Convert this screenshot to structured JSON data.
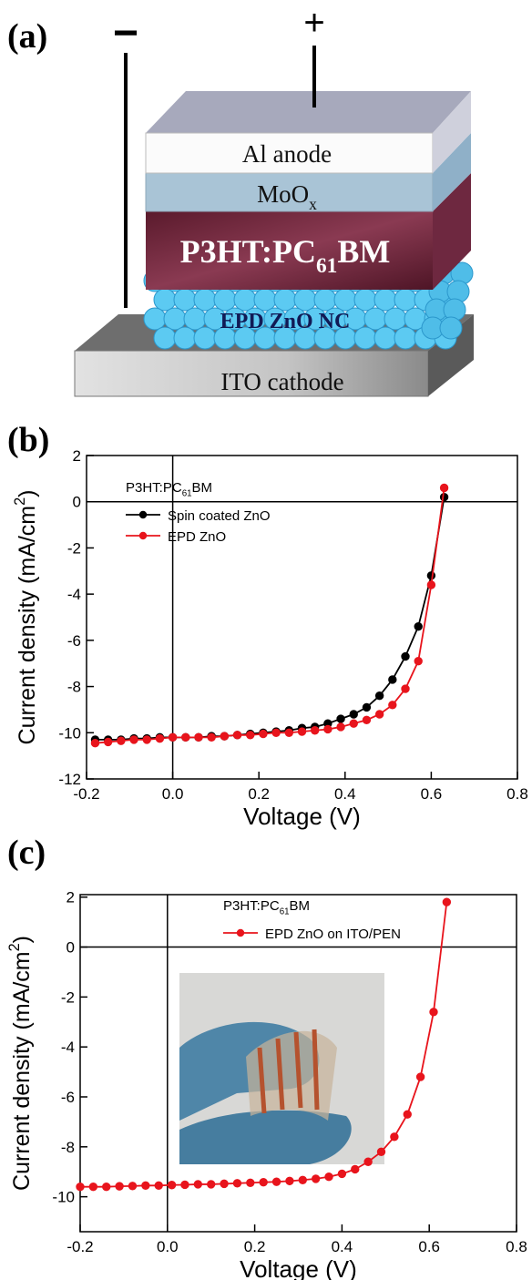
{
  "panel_labels": [
    "(a)",
    "(b)",
    "(c)"
  ],
  "diagram": {
    "minus": "−",
    "plus": "+",
    "layers": [
      [
        "Al anode"
      ],
      [
        "MoO",
        "x"
      ],
      [
        "P3HT:PC",
        "61",
        "BM"
      ],
      [
        "EPD ZnO NC"
      ],
      [
        "ITO cathode"
      ]
    ]
  },
  "chart_data": [
    {
      "type": "line",
      "x_label": "Voltage (V)",
      "y_label": [
        "Current density (mA/cm",
        "2",
        ")"
      ],
      "legend_title": [
        "P3HT:PC",
        "61",
        "BM"
      ],
      "zero_lines": true,
      "markers": true,
      "xlim": [
        -0.2,
        0.8
      ],
      "ylim": [
        -12,
        2
      ],
      "xticks": [
        -0.2,
        {
          "value": 0,
          "label": "0.0"
        },
        0.2,
        0.4,
        0.6,
        0.8
      ],
      "yticks": [
        2,
        0,
        -2,
        -4,
        -6,
        -8,
        -10,
        -12
      ],
      "x": [
        -0.18,
        -0.15,
        -0.12,
        -0.09,
        -0.06,
        -0.03,
        0,
        0.03,
        0.06,
        0.09,
        0.12,
        0.15,
        0.18,
        0.21,
        0.24,
        0.27,
        0.3,
        0.33,
        0.36,
        0.39,
        0.42,
        0.45,
        0.48,
        0.51,
        0.54,
        0.57,
        0.6,
        0.63
      ],
      "series": [
        {
          "name": "Spin coated ZnO",
          "color": "#000000",
          "values": [
            -10.3,
            -10.3,
            -10.3,
            -10.25,
            -10.25,
            -10.2,
            -10.2,
            -10.2,
            -10.2,
            -10.15,
            -10.15,
            -10.1,
            -10.05,
            -10.0,
            -9.95,
            -9.9,
            -9.8,
            -9.75,
            -9.6,
            -9.4,
            -9.2,
            -8.9,
            -8.4,
            -7.7,
            -6.7,
            -5.4,
            -3.2,
            0.2
          ]
        },
        {
          "name": "EPD ZnO",
          "color": "#e8141c",
          "values": [
            -10.45,
            -10.4,
            -10.35,
            -10.3,
            -10.3,
            -10.25,
            -10.2,
            -10.2,
            -10.2,
            -10.2,
            -10.15,
            -10.1,
            -10.1,
            -10.05,
            -10.0,
            -10.0,
            -9.95,
            -9.9,
            -9.85,
            -9.75,
            -9.6,
            -9.45,
            -9.2,
            -8.8,
            -8.1,
            -6.9,
            -3.6,
            0.6
          ]
        }
      ]
    },
    {
      "type": "line",
      "x_label": "Voltage (V)",
      "y_label": [
        "Current density (mA/cm",
        "2",
        ")"
      ],
      "legend_title": [
        "P3HT:PC",
        "61",
        "BM"
      ],
      "zero_lines": true,
      "markers": true,
      "xlim": [
        -0.2,
        0.8
      ],
      "ylim": [
        -11.4,
        2.1
      ],
      "xticks": [
        -0.2,
        {
          "value": 0,
          "label": "0.0"
        },
        0.2,
        0.4,
        0.6,
        0.8
      ],
      "yticks": [
        2,
        0,
        -2,
        -4,
        -6,
        -8,
        -10
      ],
      "x": [
        -0.2,
        -0.17,
        -0.14,
        -0.11,
        -0.08,
        -0.05,
        -0.02,
        0.01,
        0.04,
        0.07,
        0.1,
        0.13,
        0.16,
        0.19,
        0.22,
        0.25,
        0.28,
        0.31,
        0.34,
        0.37,
        0.4,
        0.43,
        0.46,
        0.49,
        0.52,
        0.55,
        0.58,
        0.61,
        0.64
      ],
      "series": [
        {
          "name": "EPD ZnO on ITO/PEN",
          "color": "#e8141c",
          "values": [
            -9.6,
            -9.6,
            -9.6,
            -9.58,
            -9.57,
            -9.55,
            -9.55,
            -9.53,
            -9.52,
            -9.5,
            -9.5,
            -9.48,
            -9.46,
            -9.44,
            -9.42,
            -9.4,
            -9.37,
            -9.33,
            -9.28,
            -9.2,
            -9.08,
            -8.9,
            -8.6,
            -8.2,
            -7.6,
            -6.7,
            -5.2,
            -2.6,
            1.8
          ]
        }
      ]
    }
  ]
}
